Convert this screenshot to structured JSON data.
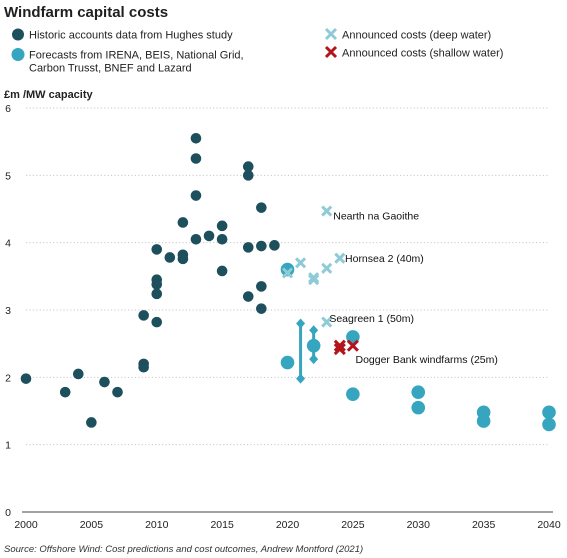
{
  "chart_data": {
    "type": "scatter",
    "title": "Windfarm capital costs",
    "ylabel": "£m /MW capacity",
    "xlim": [
      2000,
      2040
    ],
    "ylim": [
      0,
      6
    ],
    "x_ticks": [
      2000,
      2005,
      2010,
      2015,
      2020,
      2025,
      2030,
      2035,
      2040
    ],
    "y_ticks": [
      0,
      1,
      2,
      3,
      4,
      5,
      6
    ],
    "grid": "horizontal dotted",
    "legend": {
      "historic": "Historic accounts data from Hughes study",
      "forecast": "Forecasts from IRENA, BEIS, National Grid, Carbon Trusst, BNEF and Lazard",
      "deep": "Announced costs (deep water)",
      "shallow": "Announced costs (shallow water)"
    },
    "colors": {
      "historic": "#1d4f5c",
      "forecast": "#36a5bf",
      "deep": "#8ecbd6",
      "shallow": "#b4141c"
    },
    "series": {
      "historic": [
        [
          2000,
          1.98
        ],
        [
          2003,
          1.78
        ],
        [
          2004,
          2.05
        ],
        [
          2005,
          1.33
        ],
        [
          2006,
          1.93
        ],
        [
          2007,
          1.78
        ],
        [
          2009,
          2.92
        ],
        [
          2009,
          2.2
        ],
        [
          2009,
          2.15
        ],
        [
          2010,
          3.9
        ],
        [
          2010,
          3.45
        ],
        [
          2010,
          3.38
        ],
        [
          2010,
          3.24
        ],
        [
          2010,
          2.82
        ],
        [
          2011,
          3.78
        ],
        [
          2012,
          4.3
        ],
        [
          2012,
          3.82
        ],
        [
          2012,
          3.76
        ],
        [
          2013,
          5.55
        ],
        [
          2013,
          5.25
        ],
        [
          2013,
          4.7
        ],
        [
          2013,
          4.05
        ],
        [
          2014,
          4.1
        ],
        [
          2015,
          4.25
        ],
        [
          2015,
          4.05
        ],
        [
          2015,
          3.58
        ],
        [
          2017,
          5.13
        ],
        [
          2017,
          5.0
        ],
        [
          2017,
          3.93
        ],
        [
          2017,
          3.2
        ],
        [
          2018,
          4.52
        ],
        [
          2018,
          3.95
        ],
        [
          2018,
          3.35
        ],
        [
          2018,
          3.02
        ],
        [
          2019,
          3.96
        ]
      ],
      "forecast": [
        [
          2020,
          3.6
        ],
        [
          2020,
          2.22
        ],
        [
          2025,
          2.6
        ],
        [
          2025,
          1.75
        ],
        [
          2030,
          1.78
        ],
        [
          2030,
          1.55
        ],
        [
          2035,
          1.48
        ],
        [
          2035,
          1.35
        ],
        [
          2040,
          1.48
        ],
        [
          2040,
          1.3
        ],
        [
          2022,
          2.47
        ]
      ],
      "forecast_ranges": [
        {
          "x": 2021,
          "low": 1.98,
          "high": 2.8
        },
        {
          "x": 2022,
          "low": 2.27,
          "high": 2.7
        }
      ],
      "deep": [
        [
          2020,
          3.55
        ],
        [
          2021,
          3.7
        ],
        [
          2022,
          3.48
        ],
        [
          2022,
          3.45
        ],
        [
          2023,
          3.62
        ],
        [
          2023,
          4.47
        ],
        [
          2024,
          3.77
        ],
        [
          2023,
          2.82
        ]
      ],
      "shallow": [
        [
          2024,
          2.47
        ],
        [
          2024,
          2.42
        ],
        [
          2025,
          2.47
        ]
      ]
    },
    "annotations": [
      {
        "text": "Nearth na Gaoithe",
        "x": 2023.5,
        "y": 4.4
      },
      {
        "text": "Hornsea 2 (40m)",
        "x": 2024.4,
        "y": 3.77
      },
      {
        "text": "Seagreen 1 (50m)",
        "x": 2023.2,
        "y": 2.88
      },
      {
        "text": "Dogger Bank windfarms (25m)",
        "x": 2025.2,
        "y": 2.27
      }
    ],
    "source": "Source: Offshore Wind: Cost predictions and cost outcomes, Andrew Montford (2021)"
  }
}
